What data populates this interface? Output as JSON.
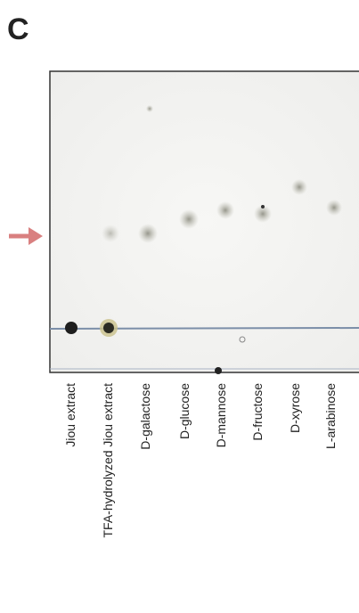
{
  "panel": {
    "label": "C"
  },
  "lanes": [
    {
      "label": "Jiou extract"
    },
    {
      "label": "TFA-hydrolyzed Jiou extract"
    },
    {
      "label": "D-galactose"
    },
    {
      "label": "D-glucose"
    },
    {
      "label": "D-mannose"
    },
    {
      "label": "D-fructose"
    },
    {
      "label": "D-xyrose"
    },
    {
      "label": "L-arabinose"
    }
  ]
}
